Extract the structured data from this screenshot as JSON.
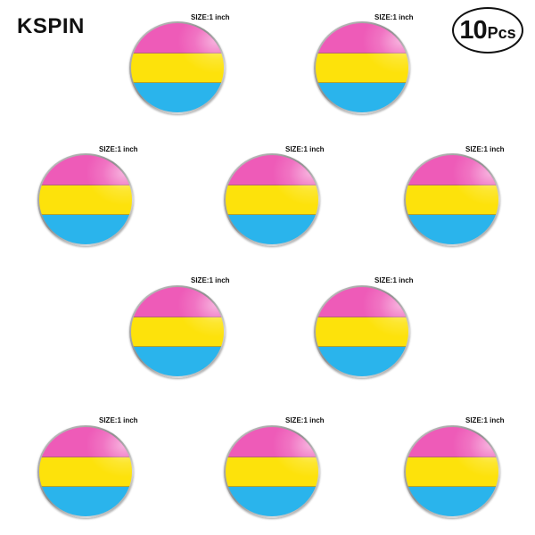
{
  "brand": "KSPIN",
  "pack": {
    "count": "10",
    "unit": "Pcs"
  },
  "size_label": "SIZE:1 inch",
  "flag_colors": {
    "pink": "#ee5bb8",
    "yellow": "#fde20b",
    "blue": "#2ab4ec"
  },
  "pins": [
    {
      "id": 1
    },
    {
      "id": 2
    },
    {
      "id": 3
    },
    {
      "id": 4
    },
    {
      "id": 5
    },
    {
      "id": 6
    },
    {
      "id": 7
    },
    {
      "id": 8
    },
    {
      "id": 9
    },
    {
      "id": 10
    }
  ]
}
